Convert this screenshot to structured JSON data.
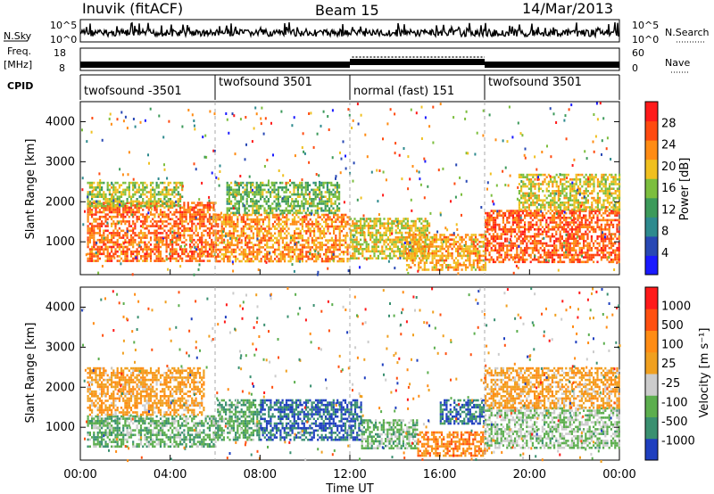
{
  "header": {
    "station": "Inuvik (fitACF)",
    "beam": "Beam 15",
    "date": "14/Mar/2013"
  },
  "top_panels": {
    "nsky_label": "N.Sky",
    "nsky_ticks": [
      "10^5",
      "10^0"
    ],
    "nsearch_label": "N.Search",
    "nsearch_ticks": [
      "10^5",
      "10^0"
    ],
    "freq_label_1": "Freq.",
    "freq_label_2": "[MHz]",
    "freq_ticks": [
      "18",
      "8"
    ],
    "nave_label": "Nave",
    "nave_ticks": [
      "60",
      "0"
    ],
    "cpid_label": "CPID",
    "cpid_segments": [
      {
        "label": "twofsound -3501",
        "start_hour": 0,
        "end_hour": 6
      },
      {
        "label": "twofsound 3501",
        "start_hour": 6,
        "end_hour": 12
      },
      {
        "label": "normal (fast) 151",
        "start_hour": 12,
        "end_hour": 18
      },
      {
        "label": "twofsound 3501",
        "start_hour": 18,
        "end_hour": 24
      }
    ]
  },
  "chart_data": [
    {
      "type": "heatmap",
      "name": "power",
      "ylabel": "Slant Range [km]",
      "ylim": [
        180,
        4500
      ],
      "yticks": [
        "1000",
        "2000",
        "3000",
        "4000"
      ],
      "xlim": [
        0,
        24
      ],
      "colorbar_label": "Power [dB]",
      "colorbar_ticks": [
        "28",
        "24",
        "20",
        "16",
        "12",
        "8",
        "4"
      ],
      "colorbar_colors": [
        "#1a1aff",
        "#2848b4",
        "#2e8a8e",
        "#3c9a5a",
        "#7cbe3e",
        "#f0c020",
        "#ff8c14",
        "#ff4a10",
        "#ff1a1a"
      ],
      "bands": [
        {
          "x": [
            0.3,
            6.0
          ],
          "y": [
            500,
            2000
          ],
          "level": 0.82
        },
        {
          "x": [
            0.3,
            4.5
          ],
          "y": [
            1900,
            2500
          ],
          "level": 0.55
        },
        {
          "x": [
            6.0,
            12.0
          ],
          "y": [
            500,
            1700
          ],
          "level": 0.75
        },
        {
          "x": [
            6.5,
            11.5
          ],
          "y": [
            1700,
            2500
          ],
          "level": 0.45
        },
        {
          "x": [
            12.0,
            15.5
          ],
          "y": [
            600,
            1600
          ],
          "level": 0.6
        },
        {
          "x": [
            14.5,
            18.0
          ],
          "y": [
            300,
            1200
          ],
          "level": 0.7
        },
        {
          "x": [
            18.0,
            24.0
          ],
          "y": [
            500,
            1800
          ],
          "level": 0.85
        },
        {
          "x": [
            19.5,
            24.0
          ],
          "y": [
            1800,
            2700
          ],
          "level": 0.6
        }
      ]
    },
    {
      "type": "heatmap",
      "name": "velocity",
      "ylabel": "Slant Range [km]",
      "ylim": [
        180,
        4500
      ],
      "yticks": [
        "1000",
        "2000",
        "3000",
        "4000"
      ],
      "xlim": [
        0,
        24
      ],
      "xticks": [
        "00:00",
        "04:00",
        "08:00",
        "12:00",
        "16:00",
        "20:00",
        "00:00"
      ],
      "xlabel": "Time UT",
      "colorbar_label": "Velocity [m s⁻¹]",
      "colorbar_ticks": [
        "1000",
        "500",
        "100",
        "25",
        "-25",
        "-100",
        "-500",
        "-1000"
      ],
      "colorbar_colors": [
        "#1f3fbf",
        "#3a9070",
        "#5cae4e",
        "#cccccc",
        "#f0a020",
        "#ff8c14",
        "#ff5010",
        "#ff1a1a"
      ],
      "bands": [
        {
          "x": [
            0.3,
            6.0
          ],
          "y": [
            500,
            1300
          ],
          "level": 0.28
        },
        {
          "x": [
            0.3,
            5.5
          ],
          "y": [
            1300,
            2500
          ],
          "level": 0.62
        },
        {
          "x": [
            6.0,
            8.0
          ],
          "y": [
            700,
            1700
          ],
          "level": 0.25
        },
        {
          "x": [
            8.0,
            12.5
          ],
          "y": [
            700,
            1700
          ],
          "level": 0.05
        },
        {
          "x": [
            12.5,
            15.0
          ],
          "y": [
            500,
            1200
          ],
          "level": 0.3
        },
        {
          "x": [
            15.0,
            18.0
          ],
          "y": [
            300,
            900
          ],
          "level": 0.72
        },
        {
          "x": [
            16.0,
            18.0
          ],
          "y": [
            1100,
            1700
          ],
          "level": 0.08
        },
        {
          "x": [
            18.0,
            24.0
          ],
          "y": [
            500,
            1500
          ],
          "level": 0.35
        },
        {
          "x": [
            18.0,
            24.0
          ],
          "y": [
            1500,
            2500
          ],
          "level": 0.6
        }
      ]
    }
  ]
}
